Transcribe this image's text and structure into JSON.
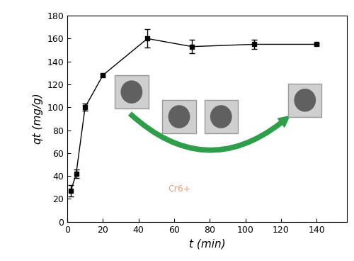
{
  "chart_data": {
    "type": "line",
    "x_label": "t (min)",
    "y_label": "qt (mg/g)",
    "x": [
      2,
      5,
      10,
      20,
      45,
      70,
      105,
      140
    ],
    "series": [
      {
        "name": "qt",
        "color": "#000000",
        "marker": "s",
        "line_style": "solid",
        "values": [
          27,
          42,
          100,
          128,
          160,
          153,
          155,
          155
        ],
        "errors": [
          5,
          4,
          3,
          1,
          8,
          6,
          4,
          1
        ]
      }
    ],
    "xlim": [
      0,
      157
    ],
    "xticks": [
      0,
      20,
      40,
      60,
      80,
      100,
      120,
      140
    ],
    "ylim": [
      0,
      180
    ],
    "yticks": [
      0,
      20,
      40,
      60,
      80,
      100,
      120,
      140,
      160,
      180
    ],
    "grid": false,
    "annotations": [
      "Cr6+"
    ]
  }
}
